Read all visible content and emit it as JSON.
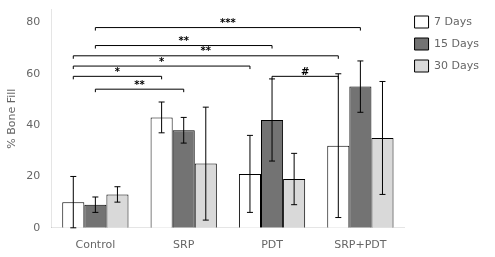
{
  "chart_data": {
    "type": "bar",
    "categories": [
      "Control",
      "SRP",
      "PDT",
      "SRP+PDT"
    ],
    "series": [
      {
        "name": "7 Days",
        "color": "white",
        "values": [
          10,
          43,
          21,
          32
        ],
        "errors": [
          10,
          6,
          15,
          28
        ]
      },
      {
        "name": "15 Days",
        "color": "#737373",
        "values": [
          9,
          38,
          42,
          55
        ],
        "errors": [
          3,
          5,
          16,
          10
        ]
      },
      {
        "name": "30 Days",
        "color": "#d9d9d9",
        "values": [
          13,
          25,
          19,
          35
        ],
        "errors": [
          3,
          22,
          10,
          22
        ]
      }
    ],
    "ylabel": "% Bone Fill",
    "ylim": [
      0,
      85
    ],
    "yticks": [
      0,
      20,
      40,
      60,
      80
    ],
    "grid": false,
    "legend": "upper right",
    "annotations": [
      {
        "text": "**",
        "y": 54,
        "from": {
          "category": "Control",
          "series": "15 Days"
        },
        "to": {
          "category": "SRP",
          "series": "15 Days"
        }
      },
      {
        "text": "*",
        "y": 59,
        "from": {
          "category": "Control",
          "series": "7 Days"
        },
        "to": {
          "category": "SRP",
          "series": "7 Days"
        }
      },
      {
        "text": "*",
        "y": 63,
        "from": {
          "category": "Control",
          "series": "7 Days"
        },
        "to": {
          "category": "PDT",
          "series": "7 Days"
        }
      },
      {
        "text": "**",
        "y": 67,
        "from": {
          "category": "Control",
          "series": "7 Days"
        },
        "to": {
          "category": "SRP+PDT",
          "series": "7 Days"
        }
      },
      {
        "text": "**",
        "y": 71,
        "from": {
          "category": "Control",
          "series": "15 Days"
        },
        "to": {
          "category": "PDT",
          "series": "15 Days"
        }
      },
      {
        "text": "***",
        "y": 78,
        "from": {
          "category": "Control",
          "series": "15 Days"
        },
        "to": {
          "category": "SRP+PDT",
          "series": "15 Days"
        }
      },
      {
        "text": "#",
        "y": 59,
        "from": {
          "category": "PDT",
          "series": "15 Days"
        },
        "to": {
          "category": "SRP+PDT",
          "series": "7 Days"
        }
      }
    ]
  }
}
